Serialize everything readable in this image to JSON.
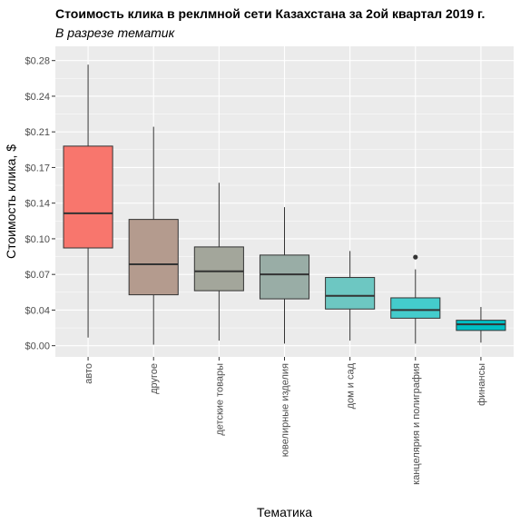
{
  "chart_data": {
    "type": "boxplot",
    "title": "Стоимость клика в реклмной сети Казахстана за 2ой квартал 2019 г.",
    "subtitle": "В разрезе тематик",
    "xlabel": "Тематика",
    "ylabel": "Стоимость клика, $",
    "ylim": [
      -0.011,
      0.294
    ],
    "y_ticks": [
      {
        "value": 0.0,
        "label": "$0.00"
      },
      {
        "value": 0.035,
        "label": "$0.04"
      },
      {
        "value": 0.07,
        "label": "$0.07"
      },
      {
        "value": 0.105,
        "label": "$0.10"
      },
      {
        "value": 0.14,
        "label": "$0.14"
      },
      {
        "value": 0.175,
        "label": "$0.17"
      },
      {
        "value": 0.21,
        "label": "$0.21"
      },
      {
        "value": 0.245,
        "label": "$0.24"
      },
      {
        "value": 0.28,
        "label": "$0.28"
      }
    ],
    "grid": true,
    "legend": "none",
    "categories": [
      "авто",
      "другое",
      "детские товары",
      "ювелирные изделия",
      "дом и сад",
      "канцелярия и полиграфия",
      "финансы"
    ],
    "boxes": [
      {
        "category": "авто",
        "whisker_low": 0.008,
        "q1": 0.096,
        "median": 0.13,
        "q3": 0.196,
        "whisker_high": 0.276,
        "outliers": [],
        "color": "#F8766D"
      },
      {
        "category": "другое",
        "whisker_low": 0.001,
        "q1": 0.05,
        "median": 0.08,
        "q3": 0.124,
        "whisker_high": 0.215,
        "outliers": [],
        "color": "#B49B8E"
      },
      {
        "category": "детские товары",
        "whisker_low": 0.005,
        "q1": 0.054,
        "median": 0.073,
        "q3": 0.097,
        "whisker_high": 0.16,
        "outliers": [],
        "color": "#A3A69B"
      },
      {
        "category": "ювелирные изделия",
        "whisker_low": 0.002,
        "q1": 0.046,
        "median": 0.07,
        "q3": 0.089,
        "whisker_high": 0.136,
        "outliers": [],
        "color": "#99ADA6"
      },
      {
        "category": "дом и сад",
        "whisker_low": 0.005,
        "q1": 0.036,
        "median": 0.049,
        "q3": 0.067,
        "whisker_high": 0.093,
        "outliers": [],
        "color": "#6DC7C2"
      },
      {
        "category": "канцелярия и полиграфия",
        "whisker_low": 0.002,
        "q1": 0.027,
        "median": 0.035,
        "q3": 0.047,
        "whisker_high": 0.075,
        "outliers": [
          0.087
        ],
        "color": "#44CCCC"
      },
      {
        "category": "финансы",
        "whisker_low": 0.003,
        "q1": 0.015,
        "median": 0.021,
        "q3": 0.025,
        "whisker_high": 0.038,
        "outliers": [],
        "color": "#00BFC4"
      }
    ]
  }
}
